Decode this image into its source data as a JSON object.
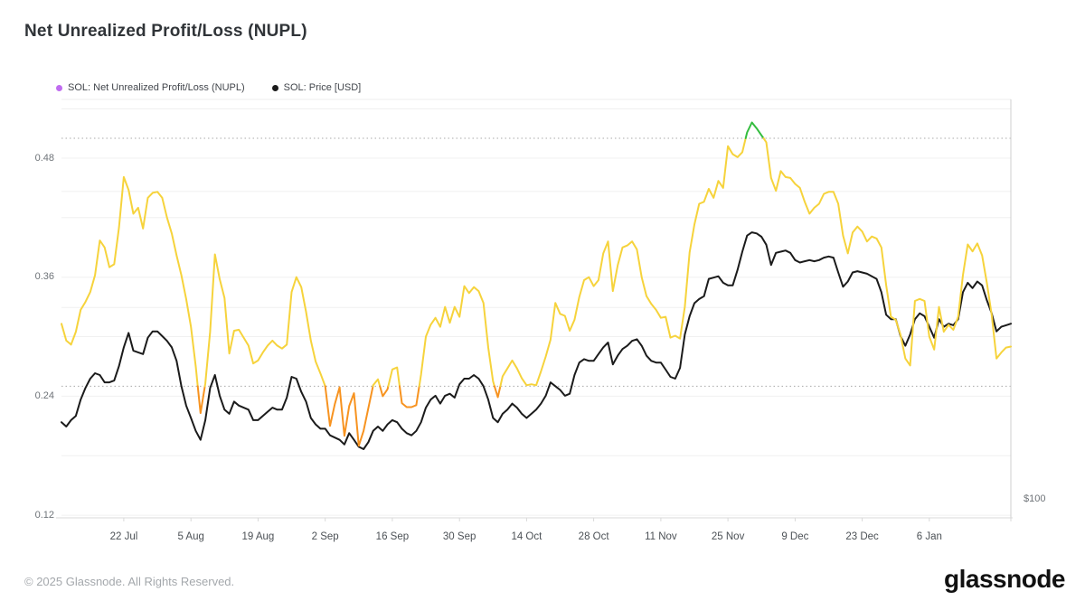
{
  "header": {
    "title": "Net Unrealized Profit/Loss (NUPL)"
  },
  "legend": {
    "items": [
      {
        "label": "SOL: Net Unrealized Profit/Loss (NUPL)",
        "dot_color": "#c06cf0"
      },
      {
        "label": "SOL: Price [USD]",
        "dot_color": "#1b1b1b"
      }
    ]
  },
  "footer": {
    "copyright": "© 2025 Glassnode. All Rights Reserved.",
    "brand": "glassnode"
  },
  "chart_data": {
    "type": "line",
    "title": "Net Unrealized Profit/Loss (NUPL)",
    "x_unit": "days",
    "x_domain_days": [
      0,
      198
    ],
    "x_ticks": [
      {
        "label": "22 Jul",
        "day": 13
      },
      {
        "label": "5 Aug",
        "day": 27
      },
      {
        "label": "19 Aug",
        "day": 41
      },
      {
        "label": "2 Sep",
        "day": 55
      },
      {
        "label": "16 Sep",
        "day": 69
      },
      {
        "label": "30 Sep",
        "day": 83
      },
      {
        "label": "14 Oct",
        "day": 97
      },
      {
        "label": "28 Oct",
        "day": 111
      },
      {
        "label": "11 Nov",
        "day": 125
      },
      {
        "label": "25 Nov",
        "day": 139
      },
      {
        "label": "9 Dec",
        "day": 153
      },
      {
        "label": "23 Dec",
        "day": 167
      },
      {
        "label": "6 Jan",
        "day": 181
      }
    ],
    "y_left": {
      "tick_labels": [
        "0.48",
        "0.36",
        "0.24",
        "0.12"
      ],
      "tick_values": [
        0.48,
        0.36,
        0.24,
        0.12
      ],
      "gridline_step": 0.06,
      "range": [
        0.117,
        0.539
      ]
    },
    "y_right": {
      "scale": "log",
      "visible_tick_label": "$100",
      "visible_tick_value": 100,
      "gridline_values": [
        200,
        300,
        400
      ]
    },
    "thresholds": {
      "dotted_lines": [
        0.5,
        0.25
      ],
      "zone_colors": {
        "above_0.50": "#34bd3f",
        "between_0.25_0.50": "#f6d33c",
        "below_0.25": "#f79320"
      }
    },
    "grid": true,
    "legend_position": "top-left",
    "series": [
      {
        "name": "SOL: Net Unrealized Profit/Loss (NUPL)",
        "axis": "left",
        "values": [
          0.313,
          0.296,
          0.292,
          0.305,
          0.327,
          0.335,
          0.345,
          0.362,
          0.397,
          0.39,
          0.37,
          0.373,
          0.41,
          0.461,
          0.448,
          0.424,
          0.43,
          0.409,
          0.44,
          0.445,
          0.446,
          0.44,
          0.42,
          0.404,
          0.382,
          0.362,
          0.338,
          0.31,
          0.27,
          0.223,
          0.253,
          0.305,
          0.383,
          0.358,
          0.339,
          0.283,
          0.306,
          0.307,
          0.299,
          0.291,
          0.273,
          0.276,
          0.284,
          0.291,
          0.296,
          0.291,
          0.288,
          0.292,
          0.345,
          0.36,
          0.35,
          0.325,
          0.296,
          0.275,
          0.263,
          0.25,
          0.21,
          0.232,
          0.249,
          0.2,
          0.23,
          0.243,
          0.19,
          0.205,
          0.228,
          0.251,
          0.257,
          0.24,
          0.247,
          0.267,
          0.269,
          0.233,
          0.229,
          0.229,
          0.231,
          0.262,
          0.3,
          0.312,
          0.319,
          0.31,
          0.33,
          0.314,
          0.33,
          0.32,
          0.351,
          0.344,
          0.35,
          0.346,
          0.334,
          0.289,
          0.255,
          0.239,
          0.26,
          0.268,
          0.276,
          0.268,
          0.258,
          0.251,
          0.252,
          0.251,
          0.265,
          0.28,
          0.297,
          0.334,
          0.323,
          0.321,
          0.306,
          0.317,
          0.34,
          0.357,
          0.36,
          0.351,
          0.357,
          0.384,
          0.396,
          0.346,
          0.372,
          0.39,
          0.392,
          0.396,
          0.388,
          0.36,
          0.341,
          0.333,
          0.327,
          0.319,
          0.32,
          0.299,
          0.301,
          0.298,
          0.33,
          0.385,
          0.413,
          0.434,
          0.436,
          0.449,
          0.44,
          0.457,
          0.45,
          0.492,
          0.484,
          0.481,
          0.486,
          0.506,
          0.516,
          0.51,
          0.503,
          0.496,
          0.46,
          0.447,
          0.467,
          0.461,
          0.46,
          0.454,
          0.45,
          0.436,
          0.424,
          0.43,
          0.434,
          0.444,
          0.446,
          0.446,
          0.434,
          0.402,
          0.384,
          0.405,
          0.411,
          0.406,
          0.396,
          0.401,
          0.399,
          0.39,
          0.352,
          0.32,
          0.317,
          0.302,
          0.278,
          0.271,
          0.336,
          0.338,
          0.336,
          0.3,
          0.287,
          0.33,
          0.305,
          0.312,
          0.307,
          0.32,
          0.362,
          0.393,
          0.386,
          0.394,
          0.382,
          0.354,
          0.322,
          0.278,
          0.284,
          0.289,
          0.29
        ]
      },
      {
        "name": "SOL: Price [USD]",
        "axis": "right",
        "color": "#1b1b1b",
        "values": [
          134,
          132,
          135,
          137,
          145,
          151,
          156,
          159,
          158,
          154,
          154,
          155,
          163,
          174,
          183,
          172,
          171,
          170,
          180,
          184,
          184,
          181,
          178,
          174,
          166,
          152,
          142,
          136,
          130,
          126,
          135,
          151,
          158,
          147,
          140,
          138,
          144,
          142,
          141,
          140,
          135,
          135,
          137,
          139,
          141,
          140,
          140,
          146,
          157,
          156,
          149,
          144,
          136,
          133,
          131,
          131,
          128,
          127,
          126,
          124,
          129,
          126,
          123,
          122,
          125,
          130,
          132,
          130,
          133,
          135,
          134,
          131,
          129,
          128,
          130,
          134,
          141,
          145,
          147,
          143,
          147,
          148,
          146,
          153,
          156,
          156,
          158,
          156,
          152,
          145,
          136,
          134,
          138,
          140,
          143,
          141,
          138,
          136,
          138,
          140,
          143,
          147,
          154,
          152,
          150,
          147,
          148,
          158,
          165,
          167,
          166,
          166,
          170,
          174,
          177,
          164,
          169,
          173,
          175,
          178,
          179,
          175,
          169,
          166,
          165,
          165,
          161,
          157,
          156,
          162,
          182,
          194,
          203,
          206,
          208,
          221,
          222,
          223,
          218,
          216,
          216,
          228,
          243,
          257,
          260,
          259,
          256,
          249,
          232,
          242,
          243,
          244,
          242,
          236,
          234,
          235,
          236,
          235,
          236,
          238,
          239,
          238,
          226,
          215,
          219,
          226,
          227,
          226,
          225,
          223,
          221,
          211,
          195,
          192,
          192,
          181,
          175,
          182,
          192,
          196,
          194,
          187,
          180,
          192,
          187,
          189,
          188,
          192,
          211,
          218,
          214,
          219,
          216,
          205,
          196,
          184,
          187,
          188,
          189
        ]
      }
    ]
  },
  "style": {
    "grid_color": "#f0f0f0",
    "dotted_color": "#a9a9a9",
    "axis_color": "#d9d9d9",
    "right_axis_color": "#cfcfcf",
    "top_border_color": "#ececec"
  }
}
